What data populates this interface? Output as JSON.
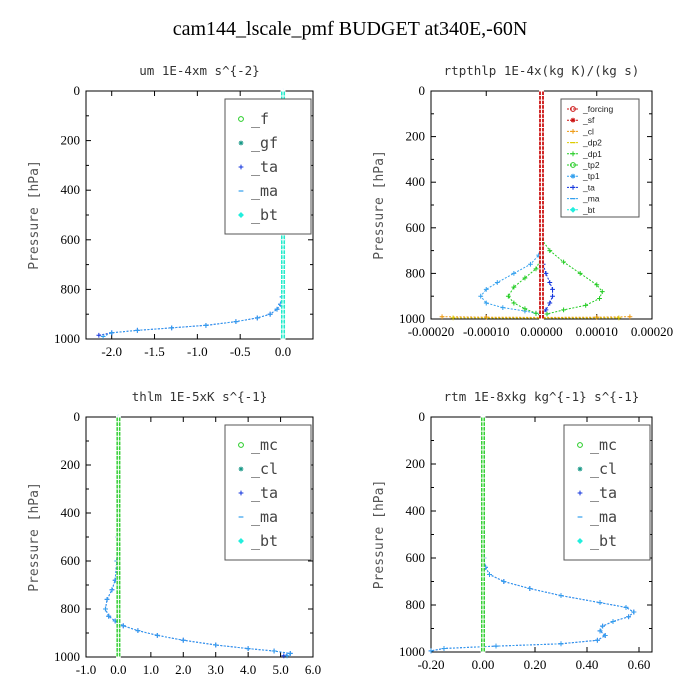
{
  "figure": {
    "title": "cam144_lscale_pmf  BUDGET at340E,-60N"
  },
  "colors": {
    "green": "#22cc22",
    "teal": "#1a9988",
    "blue": "#1133dd",
    "ltblue": "#33a0ee",
    "cyan": "#22eedd",
    "red": "#cc1111",
    "orange": "#ee9911",
    "yellow": "#ddcc00"
  },
  "chart_data": [
    {
      "type": "line",
      "title": "um   1E-4xm s^{-2}",
      "ylabel": "Pressure [hPa]",
      "xlim": [
        -2.3,
        0.35
      ],
      "ylim": [
        1000,
        0
      ],
      "xticks": [
        -2.0,
        -1.5,
        -1.0,
        -0.5,
        0.0
      ],
      "xtick_labels": [
        "-2.0",
        "-1.5",
        "-1.0",
        "-0.5",
        "0.0"
      ],
      "yticks": [
        0,
        200,
        400,
        600,
        800,
        1000
      ],
      "legend": {
        "style": "large",
        "position": "top-right",
        "items": [
          {
            "name": "_f",
            "color_key": "green",
            "marker": "circle"
          },
          {
            "name": "_gf",
            "color_key": "teal",
            "marker": "star"
          },
          {
            "name": "_ta",
            "color_key": "blue",
            "marker": "plus"
          },
          {
            "name": "_ma",
            "color_key": "ltblue",
            "marker": "dash"
          },
          {
            "name": "_bt",
            "color_key": "cyan",
            "marker": "diamond"
          }
        ]
      },
      "series": [
        {
          "name": "_ta",
          "color_key": "blue",
          "x": [
            0.0,
            0.0,
            0.0,
            0.0,
            0.0,
            -0.01,
            -0.03,
            -0.07,
            -0.15,
            -0.3,
            -0.55,
            -0.9,
            -1.3,
            -1.7,
            -2.0,
            -2.15
          ],
          "y": [
            0,
            600,
            700,
            760,
            800,
            830,
            860,
            880,
            900,
            915,
            930,
            945,
            955,
            965,
            975,
            985
          ]
        },
        {
          "name": "_ma",
          "color_key": "ltblue",
          "x": [
            0.0,
            0.0,
            0.0,
            0.0,
            0.0,
            -0.01,
            -0.03,
            -0.07,
            -0.15,
            -0.3,
            -0.55,
            -0.9,
            -1.3,
            -1.7,
            -2.0,
            -2.1
          ],
          "y": [
            0,
            600,
            700,
            760,
            800,
            830,
            860,
            880,
            900,
            915,
            930,
            945,
            955,
            965,
            975,
            990
          ]
        },
        {
          "name": "_f",
          "color_key": "green",
          "x": [
            0.0,
            0.0
          ],
          "y": [
            0,
            1000
          ]
        },
        {
          "name": "_bt",
          "color_key": "cyan",
          "x": [
            0.0,
            0.0
          ],
          "y": [
            0,
            1000
          ]
        }
      ]
    },
    {
      "type": "line",
      "title": "rtpthlp   1E-4x(kg K)/(kg s)",
      "ylabel": "Pressure [hPa]",
      "xlim": [
        -0.0002,
        0.0002
      ],
      "ylim": [
        1000,
        0
      ],
      "xticks": [
        -0.0002,
        -0.0001,
        0.0,
        0.0001,
        0.0002
      ],
      "xtick_labels": [
        "-0.00020",
        "-0.00010",
        "0.00000",
        "0.00010",
        "0.00020"
      ],
      "yticks": [
        0,
        200,
        400,
        600,
        800,
        1000
      ],
      "legend": {
        "style": "small",
        "position": "top-right",
        "items": [
          {
            "name": "_forcing",
            "color_key": "red",
            "marker": "circle"
          },
          {
            "name": "_sf",
            "color_key": "red",
            "marker": "star"
          },
          {
            "name": "_cl",
            "color_key": "orange",
            "marker": "plus"
          },
          {
            "name": "_dp2",
            "color_key": "yellow",
            "marker": "dash"
          },
          {
            "name": "_dp1",
            "color_key": "green",
            "marker": "plus"
          },
          {
            "name": "_tp2",
            "color_key": "green",
            "marker": "circle"
          },
          {
            "name": "_tp1",
            "color_key": "ltblue",
            "marker": "star"
          },
          {
            "name": "_ta",
            "color_key": "blue",
            "marker": "plus"
          },
          {
            "name": "_ma",
            "color_key": "ltblue",
            "marker": "dash"
          },
          {
            "name": "_bt",
            "color_key": "cyan",
            "marker": "diamond"
          }
        ]
      },
      "series": [
        {
          "name": "_tp1",
          "color_key": "ltblue",
          "x": [
            0.0,
            -5e-06,
            -2e-05,
            -5e-05,
            -8e-05,
            -0.0001,
            -0.00011,
            -0.0001,
            -7e-05,
            -3e-05,
            -1e-05,
            0.0
          ],
          "y": [
            680,
            720,
            760,
            800,
            840,
            870,
            900,
            930,
            950,
            965,
            975,
            985
          ]
        },
        {
          "name": "_ta",
          "color_key": "blue",
          "x": [
            0.0,
            3e-06,
            8e-06,
            1.5e-05,
            2e-05,
            2e-05,
            1.5e-05,
            8e-06,
            0.0
          ],
          "y": [
            700,
            760,
            800,
            840,
            870,
            900,
            930,
            960,
            985
          ]
        },
        {
          "name": "_dp1",
          "color_key": "green",
          "x": [
            0.0,
            1.5e-05,
            4e-05,
            7e-05,
            0.0001,
            0.00011,
            0.000105,
            8e-05,
            4e-05,
            1e-05
          ],
          "y": [
            650,
            700,
            750,
            800,
            850,
            880,
            910,
            940,
            960,
            978
          ]
        },
        {
          "name": "_tp2",
          "color_key": "green",
          "x": [
            0.0,
            -1e-05,
            -3e-05,
            -5e-05,
            -6e-05,
            -5e-05,
            -3e-05,
            -1e-05,
            0.0
          ],
          "y": [
            730,
            780,
            820,
            860,
            900,
            930,
            955,
            975,
            988
          ]
        },
        {
          "name": "_cl",
          "color_key": "orange",
          "x": [
            -0.00018,
            -0.0001,
            0.0,
            0.0001,
            0.00016
          ],
          "y": [
            990,
            992,
            993,
            992,
            990
          ]
        },
        {
          "name": "_dp2",
          "color_key": "yellow",
          "x": [
            -0.00016,
            0.0,
            0.00014
          ],
          "y": [
            995,
            996,
            995
          ]
        },
        {
          "name": "_forcing",
          "color_key": "red",
          "x": [
            0.0,
            0.0
          ],
          "y": [
            0,
            1000
          ]
        }
      ]
    },
    {
      "type": "line",
      "title": "thlm   1E-5xK s^{-1}",
      "ylabel": "Pressure [hPa]",
      "xlim": [
        -1.0,
        6.0
      ],
      "ylim": [
        1000,
        0
      ],
      "xticks": [
        -1.0,
        0.0,
        1.0,
        2.0,
        3.0,
        4.0,
        5.0,
        6.0
      ],
      "xtick_labels": [
        "-1.0",
        "0.0",
        "1.0",
        "2.0",
        "3.0",
        "4.0",
        "5.0",
        "6.0"
      ],
      "yticks": [
        0,
        200,
        400,
        600,
        800,
        1000
      ],
      "legend": {
        "style": "large",
        "position": "top-right",
        "items": [
          {
            "name": "_mc",
            "color_key": "green",
            "marker": "circle"
          },
          {
            "name": "_cl",
            "color_key": "teal",
            "marker": "star"
          },
          {
            "name": "_ta",
            "color_key": "blue",
            "marker": "plus"
          },
          {
            "name": "_ma",
            "color_key": "ltblue",
            "marker": "dash"
          },
          {
            "name": "_bt",
            "color_key": "cyan",
            "marker": "diamond"
          }
        ]
      },
      "series": [
        {
          "name": "_ta",
          "color_key": "blue",
          "x": [
            0.0,
            -0.01,
            -0.05,
            -0.1,
            -0.2,
            -0.35,
            -0.4,
            -0.3,
            -0.1,
            0.15,
            0.6,
            1.2,
            2.0,
            3.0,
            4.0,
            4.8,
            5.3,
            5.1
          ],
          "y": [
            0,
            500,
            600,
            680,
            720,
            760,
            800,
            830,
            850,
            870,
            890,
            910,
            930,
            950,
            965,
            975,
            985,
            995
          ]
        },
        {
          "name": "_ma",
          "color_key": "ltblue",
          "x": [
            0.0,
            -0.01,
            -0.05,
            -0.1,
            -0.2,
            -0.35,
            -0.4,
            -0.3,
            -0.1,
            0.15,
            0.6,
            1.2,
            2.0,
            3.0,
            4.0,
            4.8,
            5.3,
            5.2
          ],
          "y": [
            0,
            500,
            600,
            680,
            720,
            760,
            800,
            830,
            850,
            870,
            890,
            910,
            930,
            950,
            965,
            975,
            985,
            995
          ]
        },
        {
          "name": "_mc",
          "color_key": "green",
          "x": [
            0.0,
            0.0
          ],
          "y": [
            0,
            1000
          ]
        }
      ]
    },
    {
      "type": "line",
      "title": "rtm   1E-8xkg kg^{-1} s^{-1}",
      "ylabel": "Pressure [hPa]",
      "xlim": [
        -0.2,
        0.65
      ],
      "ylim": [
        1000,
        0
      ],
      "xticks": [
        -0.2,
        0.0,
        0.2,
        0.4,
        0.6
      ],
      "xtick_labels": [
        "-0.20",
        "0.00",
        "0.20",
        "0.40",
        "0.60"
      ],
      "yticks": [
        0,
        200,
        400,
        600,
        800,
        1000
      ],
      "legend": {
        "style": "large",
        "position": "top-right",
        "items": [
          {
            "name": "_mc",
            "color_key": "green",
            "marker": "circle"
          },
          {
            "name": "_cl",
            "color_key": "teal",
            "marker": "star"
          },
          {
            "name": "_ta",
            "color_key": "blue",
            "marker": "plus"
          },
          {
            "name": "_ma",
            "color_key": "ltblue",
            "marker": "dash"
          },
          {
            "name": "_bt",
            "color_key": "cyan",
            "marker": "diamond"
          }
        ]
      },
      "series": [
        {
          "name": "_ta",
          "color_key": "blue",
          "x": [
            0.0,
            0.0,
            0.003,
            0.01,
            0.025,
            0.08,
            0.18,
            0.3,
            0.45,
            0.55,
            0.58,
            0.56,
            0.5,
            0.46,
            0.45,
            0.47,
            0.44,
            0.3,
            0.05,
            -0.15,
            -0.2
          ],
          "y": [
            0,
            500,
            600,
            640,
            670,
            700,
            730,
            760,
            790,
            810,
            830,
            850,
            870,
            890,
            910,
            930,
            950,
            965,
            975,
            985,
            995
          ]
        },
        {
          "name": "_ma",
          "color_key": "ltblue",
          "x": [
            0.0,
            0.0,
            0.003,
            0.01,
            0.025,
            0.08,
            0.18,
            0.3,
            0.45,
            0.55,
            0.58,
            0.56,
            0.5,
            0.46,
            0.45,
            0.47,
            0.44,
            0.3,
            0.05,
            -0.15,
            -0.2
          ],
          "y": [
            0,
            500,
            600,
            640,
            670,
            700,
            730,
            760,
            790,
            810,
            830,
            850,
            870,
            890,
            910,
            930,
            950,
            965,
            975,
            985,
            995
          ]
        },
        {
          "name": "_mc",
          "color_key": "green",
          "x": [
            0.0,
            0.0
          ],
          "y": [
            0,
            1000
          ]
        }
      ]
    }
  ]
}
